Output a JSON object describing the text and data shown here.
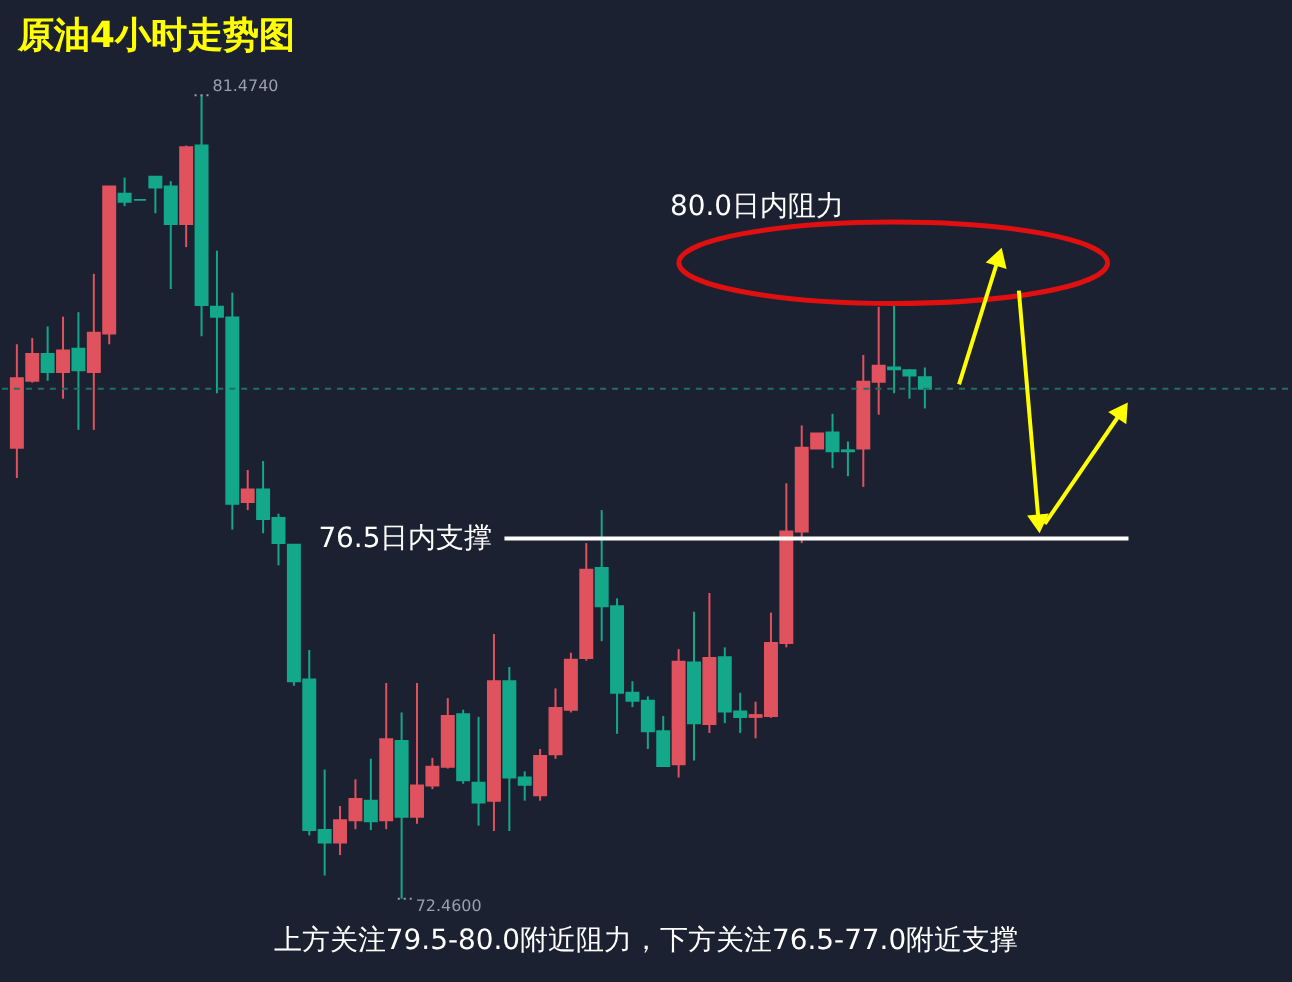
{
  "chart_data": {
    "type": "candlestick",
    "title": "原油4小时走势图",
    "categories": [
      null,
      null,
      null,
      null,
      null,
      null,
      null,
      null,
      null,
      null,
      null,
      null,
      null,
      null,
      null,
      null,
      null,
      null,
      null,
      null,
      null,
      null,
      null,
      null,
      null,
      null,
      null,
      null,
      null,
      null,
      null,
      null,
      null,
      null,
      null,
      null,
      null,
      null,
      null,
      null,
      null,
      null,
      null,
      null,
      null,
      null,
      null,
      null,
      null,
      null,
      null,
      null,
      null,
      null,
      null,
      null,
      null,
      null,
      null,
      null
    ],
    "ohlc": [
      [
        77.52,
        78.68,
        77.18,
        78.3
      ],
      [
        78.27,
        78.75,
        78.25,
        78.57
      ],
      [
        78.57,
        78.88,
        78.27,
        78.37
      ],
      [
        78.37,
        78.99,
        78.07,
        78.61
      ],
      [
        78.63,
        79.04,
        77.72,
        78.39
      ],
      [
        78.37,
        79.47,
        77.72,
        78.81
      ],
      [
        78.8,
        80.45,
        78.68,
        80.45
      ],
      [
        80.37,
        80.55,
        80.23,
        80.28
      ],
      [
        80.3,
        80.3,
        80.3,
        80.3
      ],
      [
        80.56,
        80.56,
        80.15,
        80.44
      ],
      [
        80.45,
        80.51,
        79.3,
        80.03
      ],
      [
        80.03,
        80.91,
        79.77,
        80.89
      ],
      [
        80.91,
        81.474,
        78.77,
        79.12
      ],
      [
        79.1,
        79.73,
        78.13,
        78.99
      ],
      [
        78.98,
        79.26,
        76.6,
        76.89
      ],
      [
        76.91,
        77.27,
        76.82,
        77.05
      ],
      [
        77.05,
        77.37,
        76.56,
        76.72
      ],
      [
        76.73,
        76.78,
        76.2,
        76.45
      ],
      [
        76.43,
        76.43,
        74.85,
        74.9
      ],
      [
        74.92,
        75.25,
        73.17,
        73.23
      ],
      [
        73.23,
        73.91,
        72.72,
        73.09
      ],
      [
        73.09,
        73.5,
        72.95,
        73.34
      ],
      [
        73.34,
        73.8,
        73.24,
        73.58
      ],
      [
        73.56,
        74.03,
        73.23,
        73.33
      ],
      [
        73.34,
        74.88,
        73.24,
        74.25
      ],
      [
        74.23,
        74.55,
        72.46,
        73.38
      ],
      [
        73.38,
        74.88,
        73.3,
        73.73
      ],
      [
        73.73,
        74.04,
        73.69,
        73.94
      ],
      [
        73.94,
        74.71,
        73.92,
        74.51
      ],
      [
        74.53,
        74.58,
        73.75,
        73.79
      ],
      [
        73.76,
        74.5,
        73.28,
        73.54
      ],
      [
        73.56,
        75.43,
        73.22,
        74.9
      ],
      [
        74.9,
        75.06,
        73.22,
        73.82
      ],
      [
        73.82,
        73.89,
        73.56,
        73.74
      ],
      [
        73.62,
        74.14,
        73.56,
        74.06
      ],
      [
        74.08,
        74.82,
        74.03,
        74.6
      ],
      [
        74.58,
        75.22,
        74.55,
        75.14
      ],
      [
        75.16,
        76.45,
        75.13,
        76.15
      ],
      [
        76.17,
        76.82,
        75.35,
        75.74
      ],
      [
        75.74,
        75.83,
        74.31,
        74.77
      ],
      [
        74.77,
        74.9,
        74.61,
        74.68
      ],
      [
        74.68,
        74.73,
        74.14,
        74.34
      ],
      [
        74.34,
        74.51,
        73.94,
        73.95
      ],
      [
        73.97,
        75.26,
        73.82,
        75.12
      ],
      [
        75.11,
        75.68,
        74.01,
        74.43
      ],
      [
        74.42,
        75.89,
        74.32,
        75.16
      ],
      [
        75.17,
        75.28,
        74.43,
        74.56
      ],
      [
        74.56,
        74.77,
        74.32,
        74.5
      ],
      [
        74.5,
        74.67,
        74.26,
        74.52
      ],
      [
        74.51,
        75.67,
        74.49,
        75.33
      ],
      [
        75.33,
        77.12,
        75.28,
        76.58
      ],
      [
        76.58,
        77.77,
        76.45,
        77.52
      ],
      [
        77.51,
        77.68,
        77.51,
        77.68
      ],
      [
        77.69,
        77.9,
        77.29,
        77.48
      ],
      [
        77.49,
        77.59,
        77.2,
        77.48
      ],
      [
        77.51,
        78.56,
        77.08,
        78.26
      ],
      [
        78.26,
        79.1,
        77.89,
        78.44
      ],
      [
        78.42,
        79.12,
        78.13,
        78.4
      ],
      [
        78.39,
        78.4,
        78.07,
        78.33
      ],
      [
        78.31,
        78.42,
        77.96,
        78.18
      ]
    ],
    "colors": [
      "#e0525e",
      "#e0525e",
      "#14a88a",
      "#e0525e",
      "#14a88a",
      "#e0525e",
      "#e0525e",
      "#14a88a",
      "#14a88a",
      "#14a88a",
      "#14a88a",
      "#e0525e",
      "#14a88a",
      "#14a88a",
      "#14a88a",
      "#e0525e",
      "#14a88a",
      "#14a88a",
      "#14a88a",
      "#14a88a",
      "#14a88a",
      "#e0525e",
      "#e0525e",
      "#14a88a",
      "#e0525e",
      "#14a88a",
      "#e0525e",
      "#e0525e",
      "#e0525e",
      "#14a88a",
      "#14a88a",
      "#e0525e",
      "#14a88a",
      "#14a88a",
      "#e0525e",
      "#e0525e",
      "#e0525e",
      "#e0525e",
      "#14a88a",
      "#14a88a",
      "#14a88a",
      "#14a88a",
      "#14a88a",
      "#e0525e",
      "#14a88a",
      "#e0525e",
      "#14a88a",
      "#14a88a",
      "#e0525e",
      "#e0525e",
      "#e0525e",
      "#e0525e",
      "#e0525e",
      "#14a88a",
      "#14a88a",
      "#e0525e",
      "#e0525e",
      "#14a88a",
      "#14a88a",
      "#14a88a"
    ],
    "ref_lines": [
      {
        "axis": "y",
        "value": 76.5,
        "label": "76.5日内支撑",
        "color": "#ffffff",
        "line_style": "solid"
      },
      {
        "axis": "y",
        "value": 78.18,
        "color": "#1f6f64",
        "line_style": "dashed"
      }
    ],
    "annotations": [
      "81.4740",
      "72.4600",
      "80.0日内阻力",
      "上方关注79.5-80.0附近阻力，下方关注76.5-77.0附近支撑"
    ],
    "tick_labels": false
  }
}
